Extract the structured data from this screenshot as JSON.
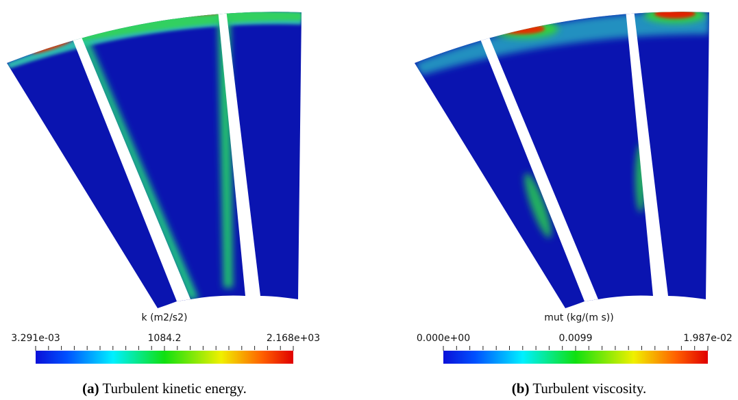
{
  "panels": [
    {
      "colorbar": {
        "title": "k (m2/s2)",
        "min": "3.291e-03",
        "mid": "1084.2",
        "max": "2.168e+03"
      },
      "caption": {
        "label": "(a)",
        "text": "Turbulent kinetic energy."
      }
    },
    {
      "colorbar": {
        "title": "mut (kg/(m s))",
        "min": "0.000e+00",
        "mid": "0.0099",
        "max": "1.987e-02"
      },
      "caption": {
        "label": "(b)",
        "text": "Turbulent viscosity."
      }
    }
  ]
}
